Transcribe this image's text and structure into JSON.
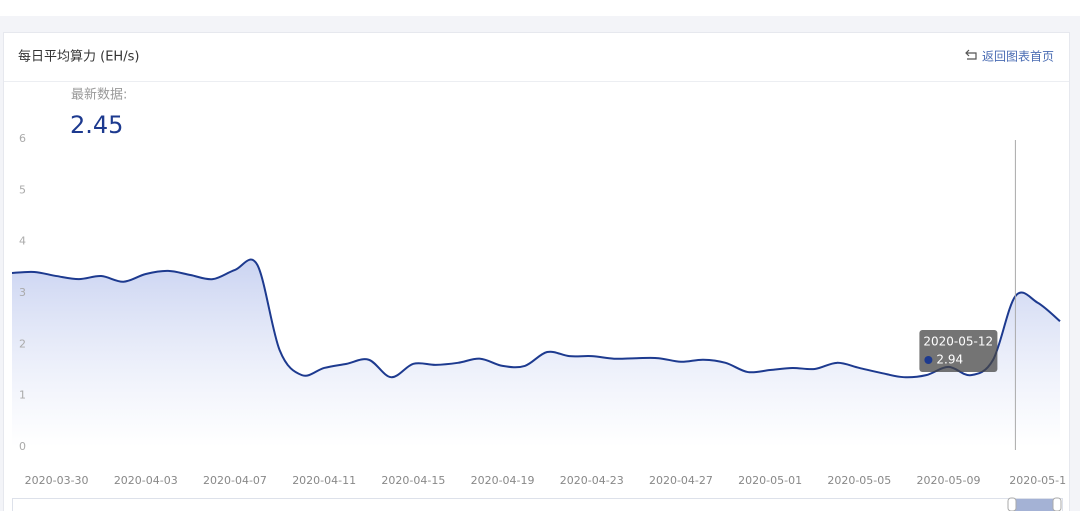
{
  "header": {
    "title": "每日平均算力 (EH/s)",
    "back": "返回图表首页"
  },
  "chart_data": {
    "type": "line",
    "annotation": "最新数据:",
    "tooltip_x": "2020-05-12",
    "x": [
      null,
      null,
      "2020-03-30",
      null,
      null,
      null,
      "2020-04-03",
      null,
      null,
      null,
      "2020-04-07",
      null,
      null,
      null,
      "2020-04-11",
      null,
      null,
      null,
      "2020-04-15",
      null,
      null,
      null,
      "2020-04-19",
      null,
      null,
      null,
      "2020-04-23",
      null,
      null,
      null,
      "2020-04-27",
      null,
      null,
      null,
      "2020-05-01",
      null,
      null,
      null,
      "2020-05-05",
      null,
      null,
      null,
      "2020-05-09",
      null,
      null,
      null,
      "2020-05-1",
      null
    ],
    "values": [
      3.39,
      3.41,
      3.33,
      3.27,
      3.33,
      3.22,
      3.37,
      3.43,
      3.35,
      3.27,
      3.45,
      3.55,
      1.89,
      1.4,
      1.54,
      1.62,
      1.7,
      1.36,
      1.62,
      1.6,
      1.64,
      1.72,
      1.58,
      1.58,
      1.85,
      1.77,
      1.77,
      1.72,
      1.73,
      1.73,
      1.66,
      1.7,
      1.64,
      1.46,
      1.5,
      1.54,
      1.52,
      1.64,
      1.54,
      1.44,
      1.36,
      1.4,
      1.56,
      1.4,
      1.7,
      2.94,
      2.81,
      2.45
    ],
    "color": "#1d3a8f",
    "ylim": [
      0,
      6
    ],
    "yticks": [
      0,
      1,
      2,
      3,
      4,
      5,
      6
    ]
  }
}
